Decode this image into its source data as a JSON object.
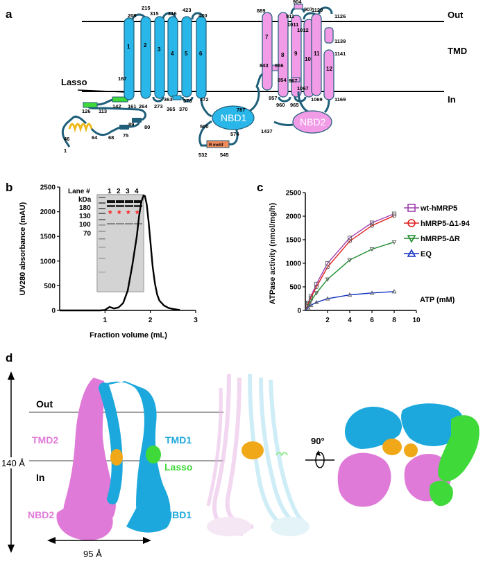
{
  "colors": {
    "tmd1": "#29b6e8",
    "tmd2": "#f29ce8",
    "lasso": "#3fd93a",
    "ligand": "#f0a818",
    "loop": "#1f5f7a",
    "rmotif": "#f08a5d",
    "membrane": "#000000"
  },
  "panel_a": {
    "letter": "a",
    "out_label": "Out",
    "tmd_label": "TMD",
    "in_label": "In",
    "lasso_label": "Lasso",
    "nbd1_label": "NBD1",
    "nbd2_label": "NBD2",
    "r_motif_label": "R motif",
    "tmd1_helices": [
      "1",
      "2",
      "3",
      "4",
      "5",
      "6"
    ],
    "tmd2_helices": [
      "7",
      "8",
      "9",
      "10",
      "11",
      "12"
    ],
    "residues": {
      "r1": "1",
      "r46": "46",
      "r64": "64",
      "r68": "68",
      "r75": "75",
      "r80": "80",
      "r89": "89",
      "r113": "113",
      "r126": "126",
      "r142": "142",
      "r161": "161",
      "r167": "167",
      "r209": "209",
      "r215": "215",
      "r264": "264",
      "r273": "273",
      "r315": "315",
      "r316": "316",
      "r363": "363",
      "r365": "365",
      "r370": "370",
      "r373": "373",
      "r423": "423",
      "r430": "430",
      "r472": "472",
      "r500": "500",
      "r532": "532",
      "r545": "545",
      "r574": "574",
      "r787": "787",
      "r843": "843",
      "r854": "854",
      "r856": "856",
      "r889": "889",
      "r904": "904",
      "r907": "907",
      "r911": "911",
      "r957": "957",
      "r960": "960",
      "r965": "965",
      "r967": "967",
      "r1011": "1011",
      "r1012": "1012",
      "r1067": "1067",
      "r1069": "1069",
      "r1120": "1120",
      "r1126": "1126",
      "r1139": "1139",
      "r1141": "1141",
      "r1169": "1169",
      "r1437": "1437"
    }
  },
  "panel_b": {
    "letter": "b",
    "lane_label": "Lane #",
    "lanes": [
      "1",
      "2",
      "3",
      "4"
    ],
    "kda_label": "kDa",
    "markers": [
      "180",
      "130",
      "100",
      "70"
    ],
    "star": "*"
  },
  "panel_c": {
    "letter": "c",
    "atp_label": "ATP (mM)"
  },
  "panel_d": {
    "letter": "d",
    "out_label": "Out",
    "in_label": "In",
    "tmd1_label": "TMD1",
    "tmd2_label": "TMD2",
    "lasso_label": "Lasso",
    "nbd1_label": "NBD1",
    "nbd2_label": "NBD2",
    "height_label": "140 Å",
    "width_label": "95 Å",
    "rotation_label": "90°"
  },
  "chart_data": [
    {
      "type": "line",
      "panel": "b",
      "xlabel": "Fraction volume (mL)",
      "ylabel": "UV280  absorbance (mAU)",
      "xlim": [
        0,
        3
      ],
      "ylim": [
        0,
        2500
      ],
      "xticks": [
        "1",
        "2",
        "3"
      ],
      "yticks": [
        "0",
        "500",
        "1000",
        "1500",
        "2000",
        "2500"
      ],
      "series": [
        {
          "x": [
            0.0,
            0.5,
            0.9,
            1.0,
            1.1,
            1.2,
            1.3,
            1.4,
            1.5,
            1.6,
            1.7,
            1.75,
            1.8,
            1.85,
            1.88,
            1.92,
            1.96,
            2.0,
            2.05,
            2.1,
            2.15,
            2.2,
            2.3,
            2.4,
            2.5,
            2.6,
            2.65
          ],
          "y": [
            0,
            0,
            0,
            10,
            70,
            40,
            60,
            150,
            400,
            900,
            1500,
            1900,
            2200,
            2330,
            2320,
            2150,
            1800,
            1400,
            900,
            550,
            320,
            200,
            100,
            50,
            30,
            15,
            10
          ]
        }
      ]
    },
    {
      "type": "line",
      "panel": "c",
      "xlabel": "ATP (mM)",
      "ylabel": "ATPase activity (nmol/mg/h)",
      "xlim": [
        0,
        10
      ],
      "ylim": [
        0,
        2500
      ],
      "xticks": [
        "2",
        "4",
        "6",
        "8",
        "10"
      ],
      "yticks": [
        "0",
        "500",
        "1000",
        "1500",
        "2000",
        "2500"
      ],
      "legend_position": "right",
      "series": [
        {
          "name": "wt-hMRP5",
          "color": "#a040b0",
          "marker": "square",
          "x": [
            0,
            0.25,
            0.5,
            1,
            2,
            4,
            6,
            8
          ],
          "y": [
            0,
            160,
            300,
            560,
            1000,
            1540,
            1860,
            2050
          ]
        },
        {
          "name": "hMRP5-Δ1-94",
          "color": "#e02020",
          "marker": "circle",
          "x": [
            0,
            0.25,
            0.5,
            1,
            2,
            4,
            6,
            8
          ],
          "y": [
            0,
            140,
            270,
            500,
            920,
            1470,
            1800,
            2010
          ]
        },
        {
          "name": "hMRP5-ΔR",
          "color": "#1a8a2a",
          "marker": "triangle-down",
          "x": [
            0,
            0.25,
            0.5,
            1,
            2,
            4,
            6,
            8
          ],
          "y": [
            0,
            100,
            200,
            370,
            660,
            1070,
            1300,
            1450
          ]
        },
        {
          "name": "EQ",
          "color": "#1030c0",
          "marker": "triangle-up",
          "x": [
            0,
            0.25,
            0.5,
            1,
            2,
            4,
            6,
            8
          ],
          "y": [
            0,
            60,
            110,
            170,
            250,
            330,
            370,
            400
          ]
        }
      ]
    }
  ]
}
